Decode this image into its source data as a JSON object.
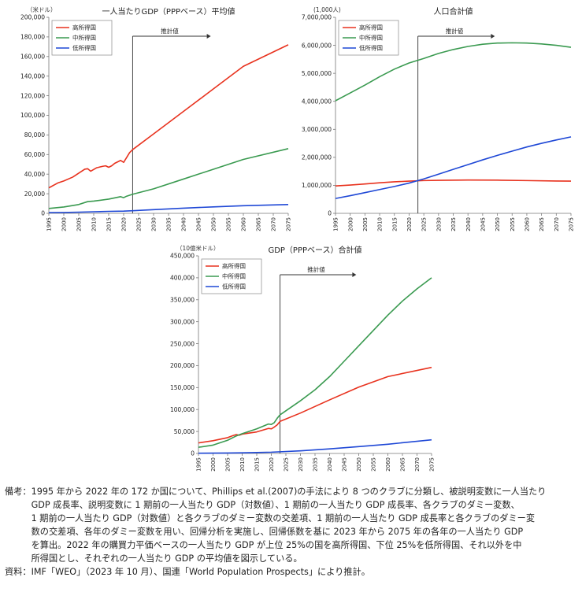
{
  "charts": [
    {
      "id": "c1",
      "unit": "（米ドル）",
      "title": "一人当たりGDP（PPPベース）平均値",
      "projection_label": "推計値",
      "legend_keys": [
        "high",
        "mid",
        "low"
      ]
    },
    {
      "id": "c2",
      "unit": "(1,000人)",
      "title": "人口合計値",
      "projection_label": "推計値",
      "legend_keys": [
        "high",
        "mid",
        "low"
      ]
    },
    {
      "id": "c3",
      "unit": "（10億米ドル）",
      "title": "GDP（PPPベース）合計値",
      "projection_label": "推計値",
      "legend_keys": [
        "high",
        "mid",
        "low"
      ]
    }
  ],
  "legend": {
    "high": {
      "label": "高所得国",
      "color": "#e8321e"
    },
    "mid": {
      "label": "中所得国",
      "color": "#3a9a50"
    },
    "low": {
      "label": "低所得国",
      "color": "#1f48d6"
    }
  },
  "chart_data": [
    {
      "type": "line",
      "title": "一人当たりGDP（PPPベース）平均値",
      "ylabel": "（米ドル）",
      "ylim": [
        0,
        200000
      ],
      "yticks": [
        0,
        20000,
        40000,
        60000,
        80000,
        100000,
        120000,
        140000,
        160000,
        180000,
        200000
      ],
      "ytick_labels": [
        "0",
        "20,000",
        "40,000",
        "60,000",
        "80,000",
        "100,000",
        "120,000",
        "140,000",
        "160,000",
        "180,000",
        "200,000"
      ],
      "xlim": [
        1995,
        2075
      ],
      "xticks": [
        1995,
        2000,
        2005,
        2010,
        2015,
        2020,
        2025,
        2030,
        2035,
        2040,
        2045,
        2050,
        2055,
        2060,
        2065,
        2070,
        2075
      ],
      "projection_start": 2023,
      "legend_position": "top-left",
      "series": [
        {
          "key": "high",
          "name": "高所得国",
          "points": [
            [
              1995,
              26000
            ],
            [
              1998,
              31000
            ],
            [
              2000,
              33000
            ],
            [
              2003,
              37000
            ],
            [
              2005,
              41000
            ],
            [
              2007,
              45000
            ],
            [
              2008,
              45500
            ],
            [
              2009,
              43000
            ],
            [
              2011,
              46500
            ],
            [
              2013,
              48000
            ],
            [
              2014,
              48500
            ],
            [
              2015,
              47000
            ],
            [
              2016,
              48500
            ],
            [
              2017,
              51000
            ],
            [
              2019,
              54000
            ],
            [
              2020,
              52000
            ],
            [
              2021,
              57000
            ],
            [
              2022,
              62000
            ],
            [
              2023,
              65000
            ],
            [
              2030,
              81000
            ],
            [
              2040,
              104000
            ],
            [
              2050,
              127000
            ],
            [
              2060,
              150000
            ],
            [
              2075,
              172000
            ]
          ]
        },
        {
          "key": "mid",
          "name": "中所得国",
          "points": [
            [
              1995,
              5000
            ],
            [
              2000,
              6500
            ],
            [
              2005,
              9000
            ],
            [
              2008,
              12000
            ],
            [
              2010,
              12500
            ],
            [
              2015,
              14500
            ],
            [
              2019,
              17000
            ],
            [
              2020,
              16000
            ],
            [
              2021,
              17500
            ],
            [
              2023,
              19500
            ],
            [
              2030,
              25000
            ],
            [
              2040,
              35000
            ],
            [
              2050,
              45000
            ],
            [
              2060,
              55000
            ],
            [
              2075,
              66000
            ]
          ]
        },
        {
          "key": "low",
          "name": "低所得国",
          "points": [
            [
              1995,
              800
            ],
            [
              2000,
              900
            ],
            [
              2005,
              1200
            ],
            [
              2010,
              1600
            ],
            [
              2015,
              2000
            ],
            [
              2020,
              2300
            ],
            [
              2023,
              2700
            ],
            [
              2030,
              3800
            ],
            [
              2040,
              5300
            ],
            [
              2050,
              6600
            ],
            [
              2060,
              7800
            ],
            [
              2075,
              9000
            ]
          ]
        }
      ]
    },
    {
      "type": "line",
      "title": "人口合計値",
      "ylabel": "(1,000人)",
      "ylim": [
        0,
        7000000
      ],
      "yticks": [
        0,
        1000000,
        2000000,
        3000000,
        4000000,
        5000000,
        6000000,
        7000000
      ],
      "ytick_labels": [
        "0",
        "1,000,000",
        "2,000,000",
        "3,000,000",
        "4,000,000",
        "5,000,000",
        "6,000,000",
        "7,000,000"
      ],
      "xlim": [
        1995,
        2075
      ],
      "xticks": [
        1995,
        2000,
        2005,
        2010,
        2015,
        2020,
        2025,
        2030,
        2035,
        2040,
        2045,
        2050,
        2055,
        2060,
        2065,
        2070,
        2075
      ],
      "projection_start": 2023,
      "legend_position": "top-left",
      "series": [
        {
          "key": "high",
          "name": "高所得国",
          "points": [
            [
              1995,
              980000
            ],
            [
              2000,
              1010000
            ],
            [
              2005,
              1050000
            ],
            [
              2010,
              1090000
            ],
            [
              2015,
              1125000
            ],
            [
              2020,
              1150000
            ],
            [
              2025,
              1170000
            ],
            [
              2030,
              1180000
            ],
            [
              2040,
              1190000
            ],
            [
              2050,
              1185000
            ],
            [
              2060,
              1170000
            ],
            [
              2070,
              1155000
            ],
            [
              2075,
              1150000
            ]
          ]
        },
        {
          "key": "mid",
          "name": "中所得国",
          "points": [
            [
              1995,
              4020000
            ],
            [
              2000,
              4300000
            ],
            [
              2005,
              4580000
            ],
            [
              2010,
              4880000
            ],
            [
              2015,
              5150000
            ],
            [
              2020,
              5370000
            ],
            [
              2025,
              5530000
            ],
            [
              2030,
              5710000
            ],
            [
              2035,
              5850000
            ],
            [
              2040,
              5960000
            ],
            [
              2045,
              6040000
            ],
            [
              2050,
              6080000
            ],
            [
              2055,
              6090000
            ],
            [
              2060,
              6080000
            ],
            [
              2065,
              6050000
            ],
            [
              2070,
              6000000
            ],
            [
              2075,
              5930000
            ]
          ]
        },
        {
          "key": "low",
          "name": "低所得国",
          "points": [
            [
              1995,
              530000
            ],
            [
              2000,
              630000
            ],
            [
              2005,
              740000
            ],
            [
              2010,
              850000
            ],
            [
              2015,
              960000
            ],
            [
              2020,
              1080000
            ],
            [
              2025,
              1230000
            ],
            [
              2030,
              1400000
            ],
            [
              2035,
              1570000
            ],
            [
              2040,
              1740000
            ],
            [
              2045,
              1910000
            ],
            [
              2050,
              2070000
            ],
            [
              2055,
              2220000
            ],
            [
              2060,
              2370000
            ],
            [
              2065,
              2500000
            ],
            [
              2070,
              2620000
            ],
            [
              2075,
              2730000
            ]
          ]
        }
      ]
    },
    {
      "type": "line",
      "title": "GDP（PPPベース）合計値",
      "ylabel": "（10億米ドル）",
      "ylim": [
        0,
        450000
      ],
      "yticks": [
        0,
        50000,
        100000,
        150000,
        200000,
        250000,
        300000,
        350000,
        400000,
        450000
      ],
      "ytick_labels": [
        "0",
        "50,000",
        "100,000",
        "150,000",
        "200,000",
        "250,000",
        "300,000",
        "350,000",
        "400,000",
        "450,000"
      ],
      "xlim": [
        1995,
        2075
      ],
      "xticks": [
        1995,
        2000,
        2005,
        2010,
        2015,
        2020,
        2025,
        2030,
        2035,
        2040,
        2045,
        2050,
        2055,
        2060,
        2065,
        2070,
        2075
      ],
      "projection_start": 2023,
      "legend_position": "top-left",
      "series": [
        {
          "key": "high",
          "name": "高所得国",
          "points": [
            [
              1995,
              24000
            ],
            [
              2000,
              29000
            ],
            [
              2005,
              36000
            ],
            [
              2007,
              41000
            ],
            [
              2008,
              43000
            ],
            [
              2009,
              41500
            ],
            [
              2010,
              44000
            ],
            [
              2015,
              49000
            ],
            [
              2019,
              57000
            ],
            [
              2020,
              56000
            ],
            [
              2021,
              60000
            ],
            [
              2022,
              65000
            ],
            [
              2023,
              73000
            ],
            [
              2030,
              92000
            ],
            [
              2040,
              122000
            ],
            [
              2050,
              151000
            ],
            [
              2060,
              175000
            ],
            [
              2075,
              196000
            ]
          ]
        },
        {
          "key": "mid",
          "name": "中所得国",
          "points": [
            [
              1995,
              14000
            ],
            [
              2000,
              19000
            ],
            [
              2005,
              30000
            ],
            [
              2008,
              40000
            ],
            [
              2010,
              45000
            ],
            [
              2015,
              56000
            ],
            [
              2019,
              67000
            ],
            [
              2020,
              66000
            ],
            [
              2021,
              70000
            ],
            [
              2022,
              80000
            ],
            [
              2023,
              88000
            ],
            [
              2030,
              120000
            ],
            [
              2035,
              145000
            ],
            [
              2040,
              175000
            ],
            [
              2045,
              210000
            ],
            [
              2050,
              245000
            ],
            [
              2055,
              280000
            ],
            [
              2060,
              315000
            ],
            [
              2065,
              347000
            ],
            [
              2070,
              375000
            ],
            [
              2075,
              400000
            ]
          ]
        },
        {
          "key": "low",
          "name": "低所得国",
          "points": [
            [
              1995,
              500
            ],
            [
              2000,
              700
            ],
            [
              2005,
              1000
            ],
            [
              2010,
              1500
            ],
            [
              2015,
              2200
            ],
            [
              2020,
              2900
            ],
            [
              2023,
              3800
            ],
            [
              2030,
              6000
            ],
            [
              2040,
              10500
            ],
            [
              2050,
              15500
            ],
            [
              2060,
              21000
            ],
            [
              2075,
              31000
            ]
          ]
        }
      ]
    }
  ],
  "notes": {
    "remark_label": "備考：",
    "remark_lines": [
      "1995 年から 2022 年の 172 か国について、Phillips et al.(2007)の手法により 8 つのクラブに分類し、被説明変数に一人当たり",
      "GDP 成長率、説明変数に 1 期前の一人当たり GDP（対数値）、1 期前の一人当たり GDP 成長率、各クラブのダミー変数、",
      "1 期前の一人当たり GDP（対数値）と各クラブのダミー変数の交差項、1 期前の一人当たり GDP 成長率と各クラブのダミー変",
      "数の交差項、各年のダミー変数を用い、回帰分析を実施し、回帰係数を基に 2023 年から 2075 年の各年の一人当たり GDP",
      "を算出。2022 年の購買力平価ベースの一人当たり GDP が上位 25%の国を高所得国、下位 25%を低所得国、それ以外を中",
      "所得国とし、それぞれの一人当たり GDP の平均値を図示している。"
    ],
    "source_label": "資料：",
    "source_text": "IMF「WEO」（2023 年 10 月）、国連「World Population Prospects」により推計。"
  }
}
